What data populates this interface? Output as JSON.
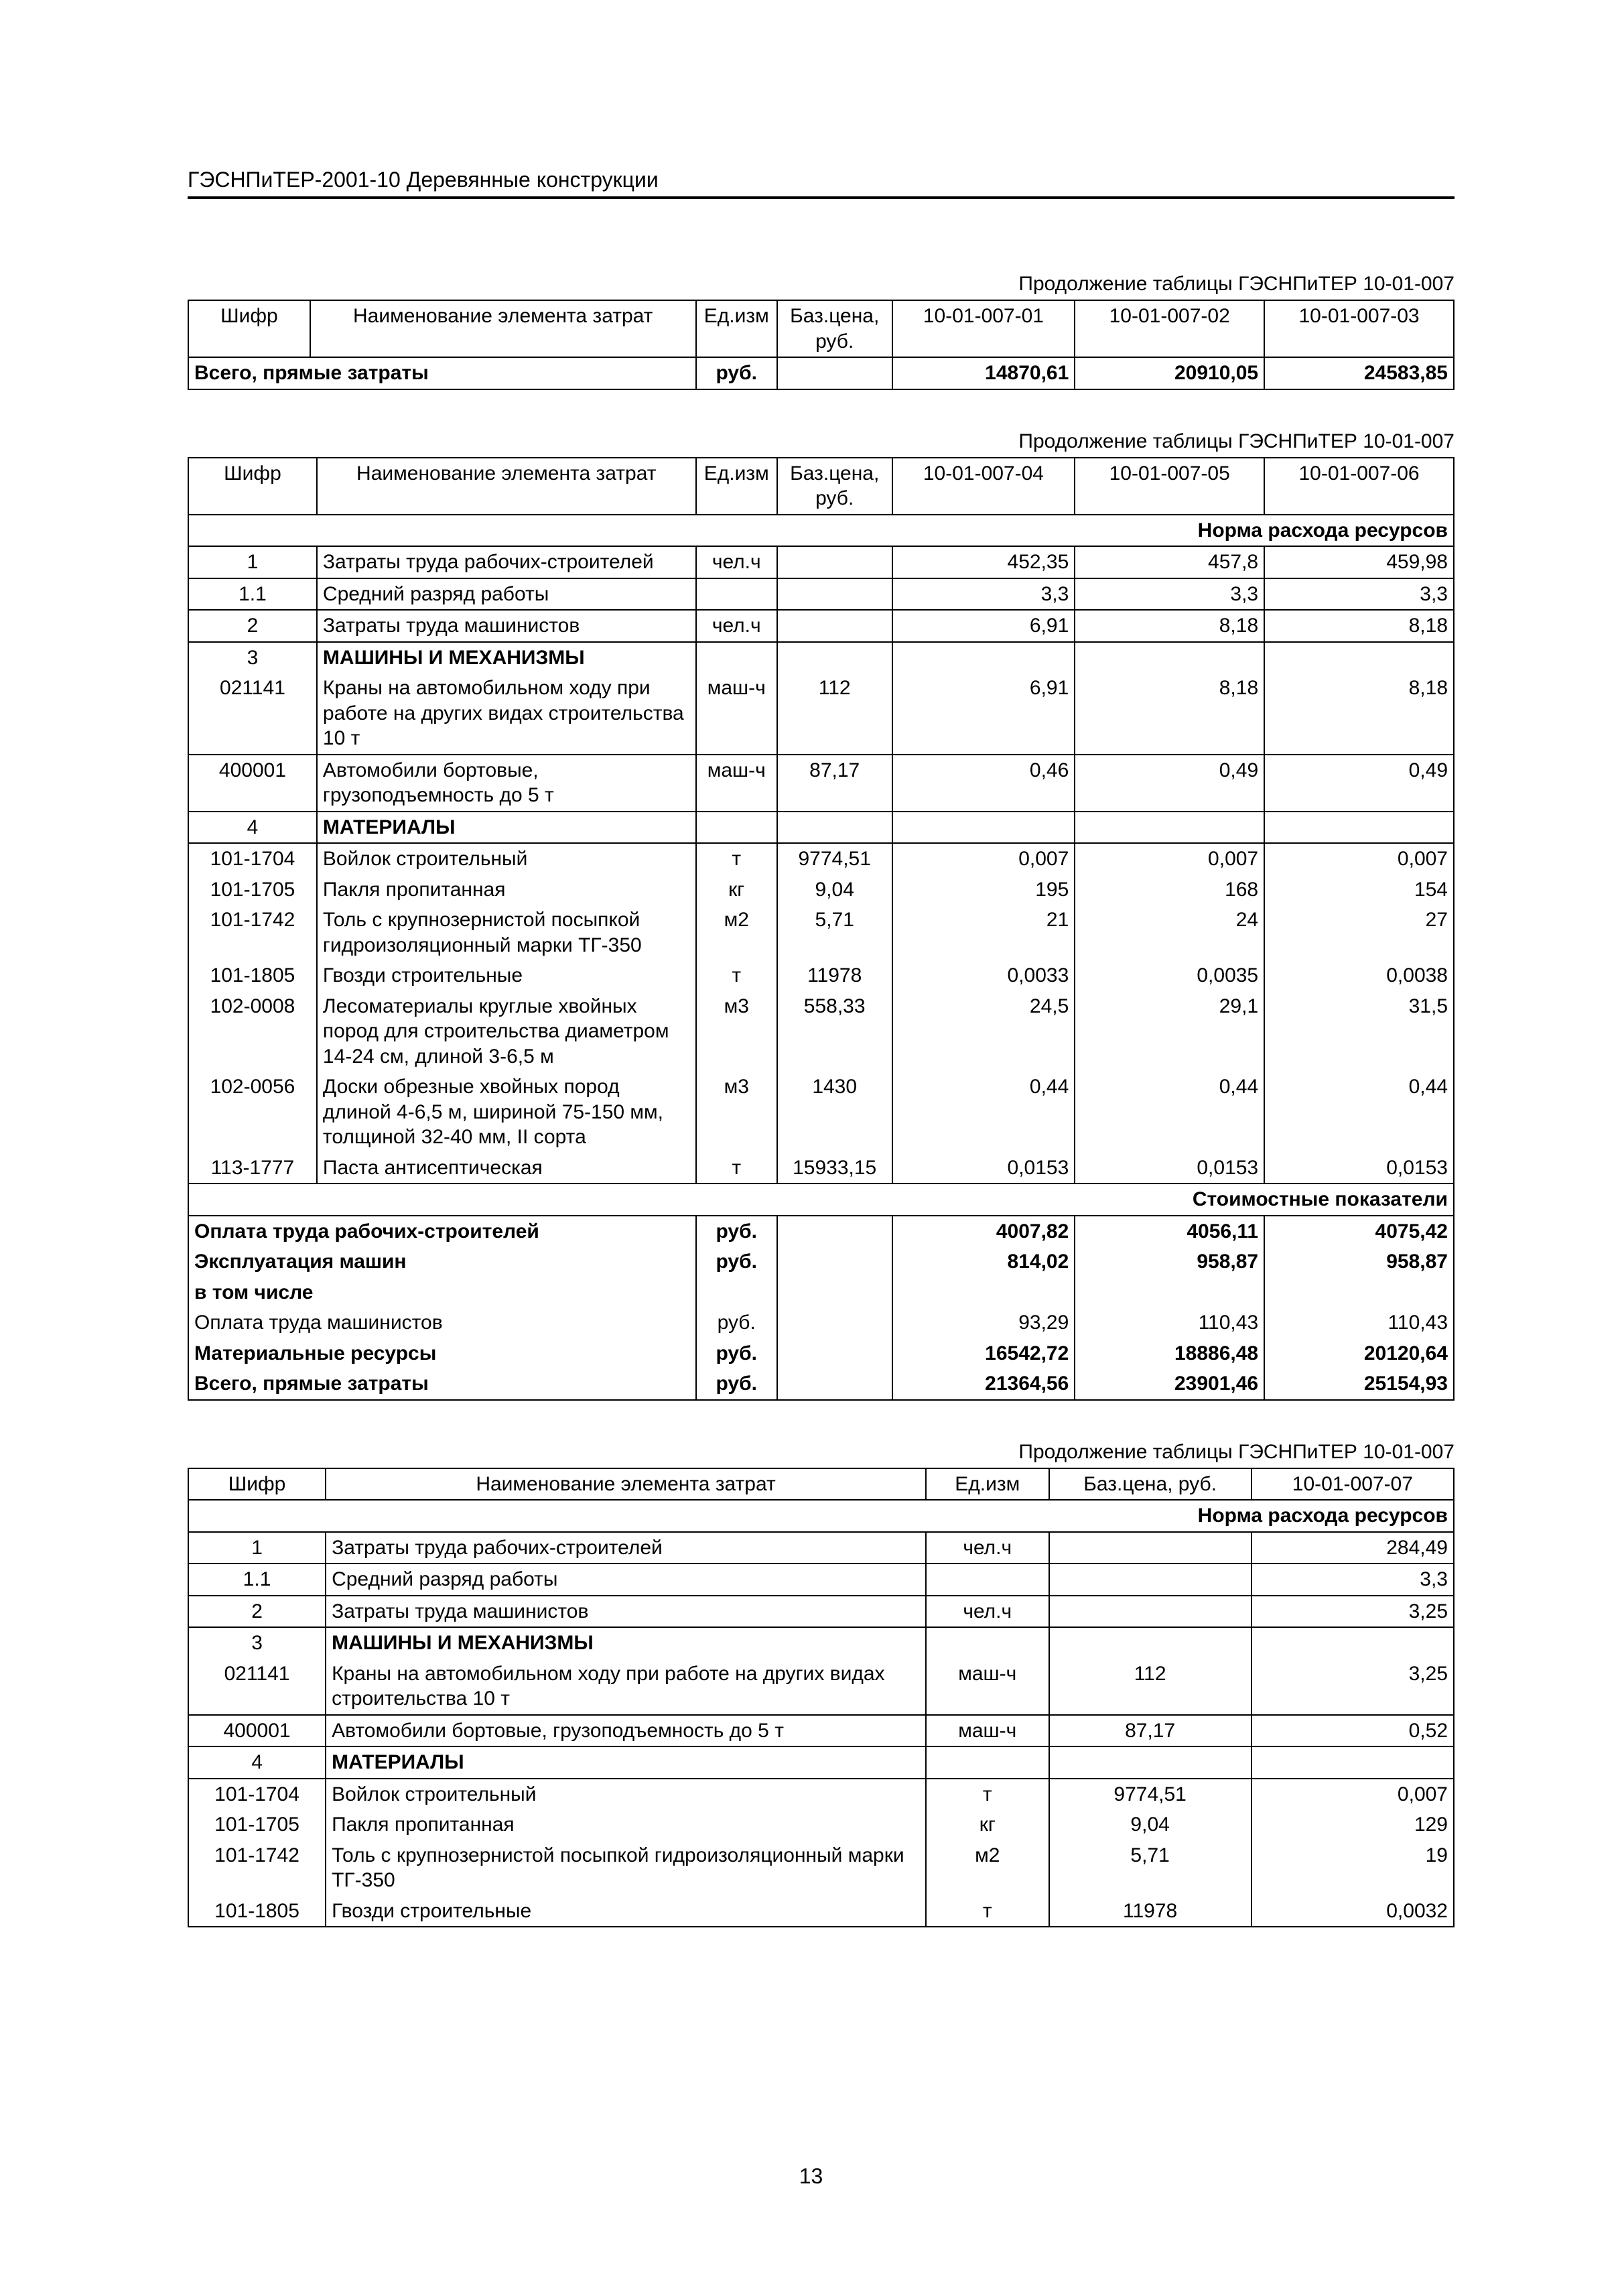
{
  "header": "ГЭСНПиТЕР-2001-10 Деревянные конструкции",
  "page_number": "13",
  "table1": {
    "caption": "Продолжение таблицы ГЭСНПиТЕР 10-01-007",
    "head": {
      "c1": "Шифр",
      "c2": "Наименование элемента затрат",
      "c3": "Ед.изм",
      "c4": "Баз.цена, руб.",
      "c5": "10-01-007-01",
      "c6": "10-01-007-02",
      "c7": "10-01-007-03"
    },
    "row": {
      "label": "Всего, прямые затраты",
      "unit": "руб.",
      "v1": "14870,61",
      "v2": "20910,05",
      "v3": "24583,85"
    }
  },
  "table2": {
    "caption": "Продолжение таблицы ГЭСНПиТЕР 10-01-007",
    "head": {
      "c1": "Шифр",
      "c2": "Наименование элемента затрат",
      "c3": "Ед.изм",
      "c4": "Баз.цена, руб.",
      "c5": "10-01-007-04",
      "c6": "10-01-007-05",
      "c7": "10-01-007-06"
    },
    "subhead1": "Норма расхода ресурсов",
    "subhead2": "Стоимостные показатели",
    "rows": [
      {
        "sh": "1",
        "name": "Затраты труда рабочих-строителей",
        "unit": "чел.ч",
        "price": "",
        "v1": "452,35",
        "v2": "457,8",
        "v3": "459,98"
      },
      {
        "sh": "1.1",
        "name": "Средний разряд работы",
        "unit": "",
        "price": "",
        "v1": "3,3",
        "v2": "3,3",
        "v3": "3,3"
      },
      {
        "sh": "2",
        "name": "Затраты труда машинистов",
        "unit": "чел.ч",
        "price": "",
        "v1": "6,91",
        "v2": "8,18",
        "v3": "8,18"
      },
      {
        "sh": "3",
        "name": "МАШИНЫ И МЕХАНИЗМЫ",
        "unit": "",
        "price": "",
        "v1": "",
        "v2": "",
        "v3": "",
        "bold": true
      },
      {
        "sh": "021141",
        "name": "Краны на автомобильном ходу при работе на других видах строительства 10 т",
        "unit": "маш-ч",
        "price": "112",
        "v1": "6,91",
        "v2": "8,18",
        "v3": "8,18"
      },
      {
        "sh": "400001",
        "name": "Автомобили бортовые, грузоподъемность до 5 т",
        "unit": "маш-ч",
        "price": "87,17",
        "v1": "0,46",
        "v2": "0,49",
        "v3": "0,49"
      },
      {
        "sh": "4",
        "name": "МАТЕРИАЛЫ",
        "unit": "",
        "price": "",
        "v1": "",
        "v2": "",
        "v3": "",
        "bold": true
      },
      {
        "sh": "101-1704",
        "name": "Войлок строительный",
        "unit": "т",
        "price": "9774,51",
        "v1": "0,007",
        "v2": "0,007",
        "v3": "0,007"
      },
      {
        "sh": "101-1705",
        "name": "Пакля пропитанная",
        "unit": "кг",
        "price": "9,04",
        "v1": "195",
        "v2": "168",
        "v3": "154"
      },
      {
        "sh": "101-1742",
        "name": "Толь с крупнозернистой посыпкой гидроизоляционный марки ТГ-350",
        "unit": "м2",
        "price": "5,71",
        "v1": "21",
        "v2": "24",
        "v3": "27"
      },
      {
        "sh": "101-1805",
        "name": "Гвозди строительные",
        "unit": "т",
        "price": "11978",
        "v1": "0,0033",
        "v2": "0,0035",
        "v3": "0,0038"
      },
      {
        "sh": "102-0008",
        "name": "Лесоматериалы круглые хвойных пород для строительства диаметром 14-24 см, длиной 3-6,5 м",
        "unit": "м3",
        "price": "558,33",
        "v1": "24,5",
        "v2": "29,1",
        "v3": "31,5"
      },
      {
        "sh": "102-0056",
        "name": "Доски обрезные хвойных пород длиной 4-6,5 м, шириной 75-150 мм, толщиной 32-40 мм, II сорта",
        "unit": "м3",
        "price": "1430",
        "v1": "0,44",
        "v2": "0,44",
        "v3": "0,44"
      },
      {
        "sh": "113-1777",
        "name": "Паста антисептическая",
        "unit": "т",
        "price": "15933,15",
        "v1": "0,0153",
        "v2": "0,0153",
        "v3": "0,0153"
      }
    ],
    "cost_rows": [
      {
        "name": "Оплата труда рабочих-строителей",
        "unit": "руб.",
        "v1": "4007,82",
        "v2": "4056,11",
        "v3": "4075,42",
        "bold": true
      },
      {
        "name": "Эксплуатация машин",
        "unit": "руб.",
        "v1": "814,02",
        "v2": "958,87",
        "v3": "958,87",
        "bold": true
      },
      {
        "name": "в том числе",
        "unit": "",
        "v1": "",
        "v2": "",
        "v3": "",
        "bold": true
      },
      {
        "name": "Оплата труда машинистов",
        "unit": "руб.",
        "v1": "93,29",
        "v2": "110,43",
        "v3": "110,43"
      },
      {
        "name": "Материальные ресурсы",
        "unit": "руб.",
        "v1": "16542,72",
        "v2": "18886,48",
        "v3": "20120,64",
        "bold": true
      },
      {
        "name": "Всего, прямые затраты",
        "unit": "руб.",
        "v1": "21364,56",
        "v2": "23901,46",
        "v3": "25154,93",
        "bold": true
      }
    ]
  },
  "table3": {
    "caption": "Продолжение таблицы ГЭСНПиТЕР 10-01-007",
    "head": {
      "c1": "Шифр",
      "c2": "Наименование элемента затрат",
      "c3": "Ед.изм",
      "c4": "Баз.цена, руб.",
      "c5": "10-01-007-07"
    },
    "subhead": "Норма расхода ресурсов",
    "rows": [
      {
        "sh": "1",
        "name": "Затраты труда рабочих-строителей",
        "unit": "чел.ч",
        "price": "",
        "v1": "284,49"
      },
      {
        "sh": "1.1",
        "name": "Средний разряд работы",
        "unit": "",
        "price": "",
        "v1": "3,3"
      },
      {
        "sh": "2",
        "name": "Затраты труда машинистов",
        "unit": "чел.ч",
        "price": "",
        "v1": "3,25"
      },
      {
        "sh": "3",
        "name": "МАШИНЫ И МЕХАНИЗМЫ",
        "unit": "",
        "price": "",
        "v1": "",
        "bold": true
      },
      {
        "sh": "021141",
        "name": "Краны на автомобильном ходу при работе на других видах строительства 10 т",
        "unit": "маш-ч",
        "price": "112",
        "v1": "3,25"
      },
      {
        "sh": "400001",
        "name": "Автомобили бортовые, грузоподъемность до 5 т",
        "unit": "маш-ч",
        "price": "87,17",
        "v1": "0,52"
      },
      {
        "sh": "4",
        "name": "МАТЕРИАЛЫ",
        "unit": "",
        "price": "",
        "v1": "",
        "bold": true
      },
      {
        "sh": "101-1704",
        "name": "Войлок строительный",
        "unit": "т",
        "price": "9774,51",
        "v1": "0,007"
      },
      {
        "sh": "101-1705",
        "name": "Пакля пропитанная",
        "unit": "кг",
        "price": "9,04",
        "v1": "129"
      },
      {
        "sh": "101-1742",
        "name": "Толь с крупнозернистой посыпкой гидроизоляционный марки ТГ-350",
        "unit": "м2",
        "price": "5,71",
        "v1": "19"
      },
      {
        "sh": "101-1805",
        "name": "Гвозди строительные",
        "unit": "т",
        "price": "11978",
        "v1": "0,0032"
      }
    ]
  },
  "layout": {
    "col_widths_t1": [
      "180px",
      "570px",
      "120px",
      "170px",
      "270px",
      "280px",
      "280px"
    ],
    "col_widths_t2": [
      "190px",
      "560px",
      "120px",
      "170px",
      "270px",
      "280px",
      "280px"
    ],
    "col_widths_t3": [
      "190px",
      "830px",
      "170px",
      "280px",
      "280px"
    ],
    "open_group_t2": [
      4,
      5,
      8,
      9,
      10,
      11,
      12,
      13,
      14
    ],
    "open_group_t3": [
      4,
      5,
      8,
      9,
      10,
      11
    ]
  }
}
